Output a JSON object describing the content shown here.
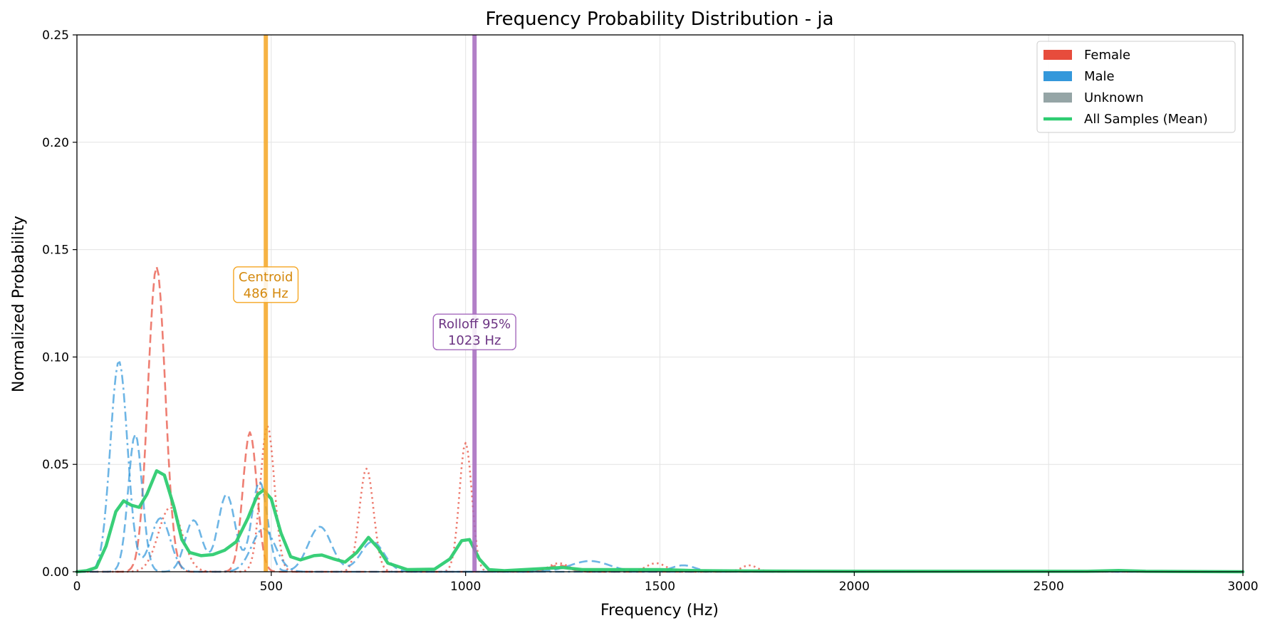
{
  "chart_data": {
    "type": "line",
    "title": "Frequency Probability Distribution - ja",
    "xlabel": "Frequency (Hz)",
    "ylabel": "Normalized Probability",
    "xlim": [
      0,
      3000
    ],
    "ylim": [
      0,
      0.25
    ],
    "xticks": [
      0,
      500,
      1000,
      1500,
      2000,
      2500,
      3000
    ],
    "yticks": [
      0.0,
      0.05,
      0.1,
      0.15,
      0.2,
      0.25
    ],
    "xtick_labels": [
      "0",
      "500",
      "1000",
      "1500",
      "2000",
      "2500",
      "3000"
    ],
    "ytick_labels": [
      "0.00",
      "0.05",
      "0.10",
      "0.15",
      "0.20",
      "0.25"
    ],
    "grid": true,
    "legend_position": "top-right",
    "legend": [
      {
        "label": "Female",
        "color": "#e74c3c",
        "kind": "patch"
      },
      {
        "label": "Male",
        "color": "#3498db",
        "kind": "patch"
      },
      {
        "label": "Unknown",
        "color": "#95a5a6",
        "kind": "patch"
      },
      {
        "label": "All Samples (Mean)",
        "color": "#2ecc71",
        "kind": "line"
      }
    ],
    "vlines": [
      {
        "x": 486,
        "color": "#f5a623",
        "label_line1": "Centroid",
        "label_line2": "486 Hz",
        "label_y": 0.134,
        "text_color": "#d4880c"
      },
      {
        "x": 1023,
        "color": "#a569bd",
        "label_line1": "Rolloff 95%",
        "label_line2": "1023 Hz",
        "label_y": 0.112,
        "text_color": "#6c3483"
      }
    ],
    "series": [
      {
        "group": "female",
        "color": "#e74c3c",
        "style": "dashed",
        "peaks": [
          [
            205,
            0.142,
            22
          ],
          [
            445,
            0.065,
            18
          ],
          [
            1240,
            0.003,
            25
          ]
        ]
      },
      {
        "group": "female",
        "color": "#e74c3c",
        "style": "dotted",
        "peaks": [
          [
            240,
            0.03,
            30
          ],
          [
            490,
            0.068,
            18
          ],
          [
            745,
            0.048,
            18
          ],
          [
            1000,
            0.06,
            16
          ],
          [
            1240,
            0.004,
            25
          ],
          [
            1490,
            0.004,
            25
          ],
          [
            1730,
            0.003,
            20
          ]
        ]
      },
      {
        "group": "male",
        "color": "#3498db",
        "style": "dashdot",
        "peaks": [
          [
            108,
            0.098,
            22
          ],
          [
            215,
            0.025,
            25
          ],
          [
            480,
            0.02,
            30
          ]
        ]
      },
      {
        "group": "male",
        "color": "#3498db",
        "style": "dashed",
        "peaks": [
          [
            150,
            0.064,
            18
          ],
          [
            300,
            0.024,
            22
          ],
          [
            385,
            0.036,
            22
          ],
          [
            470,
            0.042,
            20
          ],
          [
            625,
            0.021,
            30
          ],
          [
            760,
            0.014,
            30
          ],
          [
            1320,
            0.005,
            50
          ],
          [
            1560,
            0.003,
            30
          ]
        ]
      },
      {
        "group": "mean",
        "color": "#2ecc71",
        "style": "solid",
        "points": [
          [
            0,
            0.0
          ],
          [
            25,
            0.0005
          ],
          [
            50,
            0.002
          ],
          [
            75,
            0.012
          ],
          [
            100,
            0.028
          ],
          [
            120,
            0.033
          ],
          [
            140,
            0.031
          ],
          [
            160,
            0.03
          ],
          [
            180,
            0.036
          ],
          [
            205,
            0.047
          ],
          [
            225,
            0.045
          ],
          [
            250,
            0.03
          ],
          [
            270,
            0.015
          ],
          [
            290,
            0.009
          ],
          [
            320,
            0.0075
          ],
          [
            350,
            0.008
          ],
          [
            380,
            0.01
          ],
          [
            410,
            0.014
          ],
          [
            440,
            0.025
          ],
          [
            465,
            0.036
          ],
          [
            480,
            0.038
          ],
          [
            500,
            0.034
          ],
          [
            525,
            0.018
          ],
          [
            550,
            0.007
          ],
          [
            575,
            0.0055
          ],
          [
            610,
            0.0075
          ],
          [
            630,
            0.0078
          ],
          [
            660,
            0.006
          ],
          [
            690,
            0.0045
          ],
          [
            720,
            0.009
          ],
          [
            750,
            0.016
          ],
          [
            775,
            0.011
          ],
          [
            800,
            0.004
          ],
          [
            850,
            0.001
          ],
          [
            920,
            0.0012
          ],
          [
            960,
            0.006
          ],
          [
            990,
            0.0145
          ],
          [
            1010,
            0.015
          ],
          [
            1035,
            0.006
          ],
          [
            1060,
            0.001
          ],
          [
            1100,
            0.0005
          ],
          [
            1200,
            0.0015
          ],
          [
            1250,
            0.002
          ],
          [
            1300,
            0.001
          ],
          [
            1400,
            0.001
          ],
          [
            1500,
            0.001
          ],
          [
            1600,
            0.0005
          ],
          [
            1800,
            0.0003
          ],
          [
            2000,
            0.0002
          ],
          [
            2600,
            0.0002
          ],
          [
            2680,
            0.0006
          ],
          [
            2750,
            0.0002
          ],
          [
            3000,
            0.0
          ]
        ]
      }
    ]
  }
}
